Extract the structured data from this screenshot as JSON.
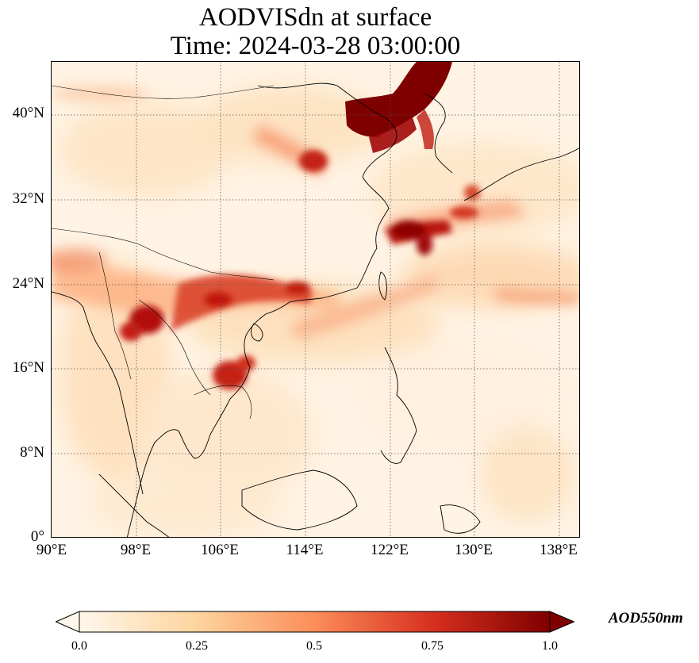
{
  "title": {
    "line1": "AODVISdn at surface",
    "line2": "Time: 2024-03-28 03:00:00"
  },
  "map": {
    "lon_range": [
      90,
      140
    ],
    "lat_range": [
      0,
      45
    ],
    "projection": "PlateCarree",
    "colormap": "OrRd",
    "gridlines": "dotted",
    "lon_ticks": [
      "90°E",
      "98°E",
      "106°E",
      "114°E",
      "122°E",
      "130°E",
      "138°E"
    ],
    "lat_ticks": [
      "0°",
      "8°N",
      "16°N",
      "24°N",
      "32°N",
      "40°N"
    ]
  },
  "colorbar": {
    "label": "AOD550nm",
    "ticks": [
      "0.0",
      "0.25",
      "0.5",
      "0.75",
      "1.0"
    ],
    "range": [
      0,
      1
    ],
    "colors": [
      "#fff7ec",
      "#fdd49e",
      "#fc8d59",
      "#d7301f",
      "#7f0000"
    ],
    "extend": "both"
  }
}
